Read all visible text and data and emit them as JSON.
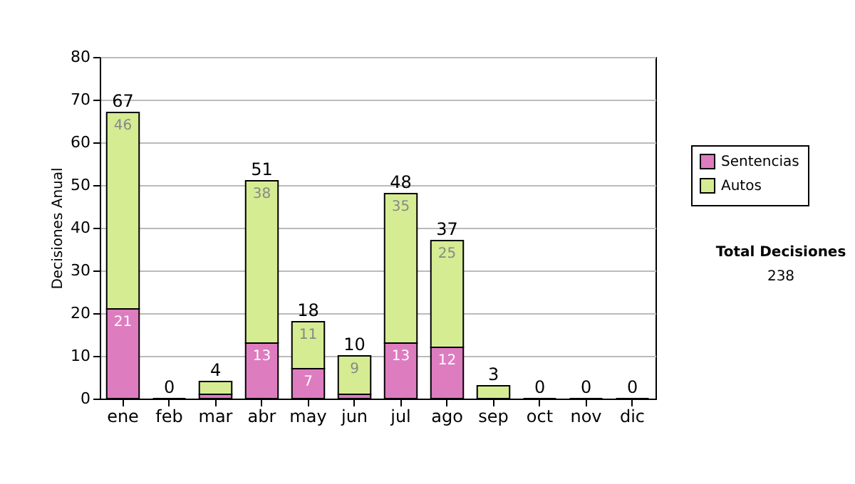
{
  "chart_data": {
    "type": "bar",
    "stacked": true,
    "ylabel": "Decisiones Anual",
    "categories": [
      "ene",
      "feb",
      "mar",
      "abr",
      "may",
      "jun",
      "jul",
      "ago",
      "sep",
      "oct",
      "nov",
      "dic"
    ],
    "series": [
      {
        "name": "Sentencias",
        "color": "#de7cc0",
        "values": [
          21,
          0,
          1,
          13,
          7,
          1,
          13,
          12,
          0,
          0,
          0,
          0
        ],
        "value_labels": [
          "21",
          null,
          null,
          "13",
          "7",
          null,
          "13",
          "12",
          null,
          null,
          null,
          null
        ]
      },
      {
        "name": "Autos",
        "color": "#d5ec93",
        "values": [
          46,
          0,
          3,
          38,
          11,
          9,
          35,
          25,
          3,
          0,
          0,
          0
        ],
        "value_labels": [
          "46",
          null,
          null,
          "38",
          "11",
          "9",
          "35",
          "25",
          null,
          null,
          null,
          null
        ]
      }
    ],
    "totals": [
      "67",
      "0",
      "4",
      "51",
      "18",
      "10",
      "48",
      "37",
      "3",
      "0",
      "0",
      "0"
    ],
    "ylim": [
      0,
      80
    ],
    "yticks": [
      0,
      10,
      20,
      30,
      40,
      50,
      60,
      70,
      80
    ],
    "grid": "y",
    "legend": "right",
    "annotations": [
      "Total Decisiones",
      "238"
    ]
  }
}
